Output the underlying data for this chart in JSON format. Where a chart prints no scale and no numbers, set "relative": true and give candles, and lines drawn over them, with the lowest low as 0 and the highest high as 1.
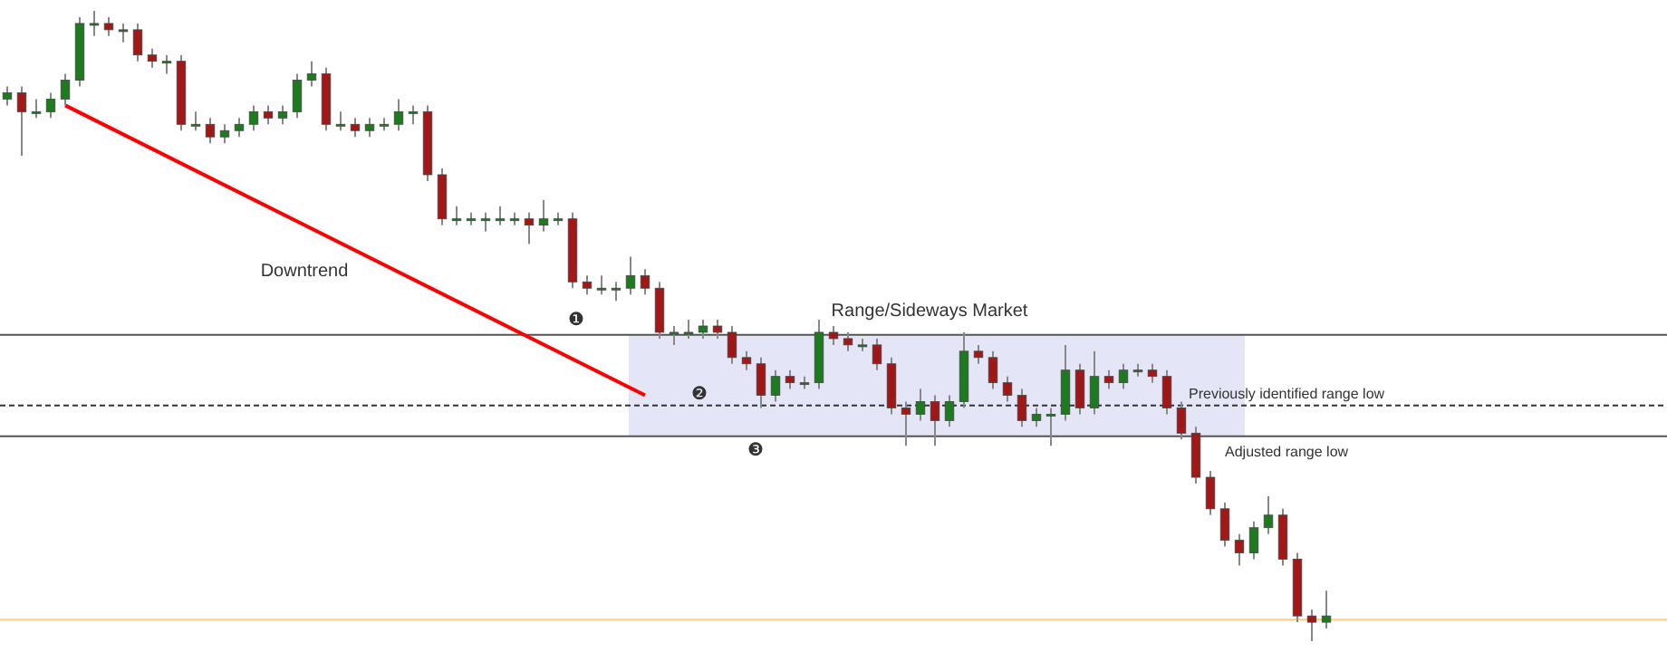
{
  "chart_data": {
    "type": "candlestick",
    "relative": true,
    "tick_labels": false,
    "categories": [
      null,
      null,
      null,
      null,
      null,
      null,
      null,
      null,
      null,
      null,
      null,
      null,
      null,
      null,
      null,
      null,
      null,
      null,
      null,
      null,
      null,
      null,
      null,
      null,
      null,
      null,
      null,
      null,
      null,
      null,
      null,
      null,
      null,
      null,
      null,
      null,
      null,
      null,
      null,
      null,
      null,
      null,
      null,
      null,
      null,
      null,
      null,
      null,
      null,
      null,
      null,
      null,
      null,
      null,
      null,
      null,
      null,
      null,
      null,
      null,
      null,
      null,
      null,
      null,
      null,
      null,
      null,
      null,
      null,
      null,
      null,
      null,
      null,
      null,
      null,
      null,
      null,
      null,
      null,
      null,
      null,
      null,
      null,
      null,
      null,
      null,
      null,
      null,
      null,
      null,
      null,
      null
    ],
    "ohlc": [
      [
        0.86,
        0.88,
        0.85,
        0.87
      ],
      [
        0.87,
        0.88,
        0.77,
        0.84
      ],
      [
        0.84,
        0.86,
        0.83,
        0.84
      ],
      [
        0.84,
        0.87,
        0.83,
        0.86
      ],
      [
        0.86,
        0.9,
        0.85,
        0.89
      ],
      [
        0.89,
        0.99,
        0.88,
        0.98
      ],
      [
        0.98,
        1.0,
        0.96,
        0.98
      ],
      [
        0.98,
        0.99,
        0.96,
        0.97
      ],
      [
        0.97,
        0.98,
        0.95,
        0.97
      ],
      [
        0.97,
        0.98,
        0.92,
        0.93
      ],
      [
        0.93,
        0.94,
        0.91,
        0.92
      ],
      [
        0.92,
        0.93,
        0.9,
        0.92
      ],
      [
        0.92,
        0.93,
        0.81,
        0.82
      ],
      [
        0.82,
        0.84,
        0.81,
        0.82
      ],
      [
        0.82,
        0.83,
        0.79,
        0.8
      ],
      [
        0.8,
        0.82,
        0.79,
        0.81
      ],
      [
        0.81,
        0.83,
        0.8,
        0.82
      ],
      [
        0.82,
        0.85,
        0.81,
        0.84
      ],
      [
        0.84,
        0.85,
        0.82,
        0.83
      ],
      [
        0.83,
        0.85,
        0.82,
        0.84
      ],
      [
        0.84,
        0.9,
        0.83,
        0.89
      ],
      [
        0.89,
        0.92,
        0.88,
        0.9
      ],
      [
        0.9,
        0.91,
        0.81,
        0.82
      ],
      [
        0.82,
        0.84,
        0.81,
        0.82
      ],
      [
        0.82,
        0.83,
        0.8,
        0.81
      ],
      [
        0.81,
        0.83,
        0.8,
        0.82
      ],
      [
        0.82,
        0.83,
        0.81,
        0.82
      ],
      [
        0.82,
        0.86,
        0.81,
        0.84
      ],
      [
        0.84,
        0.85,
        0.82,
        0.84
      ],
      [
        0.84,
        0.85,
        0.73,
        0.74
      ],
      [
        0.74,
        0.75,
        0.66,
        0.67
      ],
      [
        0.67,
        0.69,
        0.66,
        0.67
      ],
      [
        0.67,
        0.68,
        0.66,
        0.67
      ],
      [
        0.67,
        0.68,
        0.65,
        0.67
      ],
      [
        0.67,
        0.69,
        0.66,
        0.67
      ],
      [
        0.67,
        0.68,
        0.66,
        0.67
      ],
      [
        0.67,
        0.68,
        0.63,
        0.66
      ],
      [
        0.66,
        0.7,
        0.65,
        0.67
      ],
      [
        0.67,
        0.68,
        0.66,
        0.67
      ],
      [
        0.67,
        0.68,
        0.56,
        0.57
      ],
      [
        0.57,
        0.58,
        0.55,
        0.56
      ],
      [
        0.56,
        0.58,
        0.55,
        0.56
      ],
      [
        0.56,
        0.57,
        0.54,
        0.56
      ],
      [
        0.56,
        0.61,
        0.55,
        0.58
      ],
      [
        0.58,
        0.59,
        0.55,
        0.56
      ],
      [
        0.56,
        0.57,
        0.48,
        0.49
      ],
      [
        0.49,
        0.5,
        0.47,
        0.49
      ],
      [
        0.49,
        0.51,
        0.48,
        0.49
      ],
      [
        0.49,
        0.51,
        0.48,
        0.5
      ],
      [
        0.5,
        0.51,
        0.48,
        0.49
      ],
      [
        0.49,
        0.5,
        0.44,
        0.45
      ],
      [
        0.45,
        0.46,
        0.43,
        0.44
      ],
      [
        0.44,
        0.45,
        0.37,
        0.39
      ],
      [
        0.39,
        0.43,
        0.38,
        0.42
      ],
      [
        0.42,
        0.43,
        0.4,
        0.41
      ],
      [
        0.41,
        0.42,
        0.4,
        0.41
      ],
      [
        0.41,
        0.51,
        0.4,
        0.49
      ],
      [
        0.49,
        0.5,
        0.47,
        0.48
      ],
      [
        0.48,
        0.49,
        0.46,
        0.47
      ],
      [
        0.47,
        0.48,
        0.46,
        0.47
      ],
      [
        0.47,
        0.48,
        0.43,
        0.44
      ],
      [
        0.44,
        0.45,
        0.36,
        0.37
      ],
      [
        0.37,
        0.38,
        0.31,
        0.36
      ],
      [
        0.36,
        0.4,
        0.35,
        0.38
      ],
      [
        0.38,
        0.39,
        0.31,
        0.35
      ],
      [
        0.35,
        0.39,
        0.34,
        0.38
      ],
      [
        0.38,
        0.49,
        0.37,
        0.46
      ],
      [
        0.46,
        0.47,
        0.44,
        0.45
      ],
      [
        0.45,
        0.46,
        0.4,
        0.41
      ],
      [
        0.41,
        0.42,
        0.38,
        0.39
      ],
      [
        0.39,
        0.4,
        0.34,
        0.35
      ],
      [
        0.35,
        0.37,
        0.34,
        0.36
      ],
      [
        0.36,
        0.37,
        0.31,
        0.36
      ],
      [
        0.36,
        0.47,
        0.35,
        0.43
      ],
      [
        0.43,
        0.44,
        0.36,
        0.37
      ],
      [
        0.37,
        0.46,
        0.36,
        0.42
      ],
      [
        0.42,
        0.43,
        0.4,
        0.41
      ],
      [
        0.41,
        0.44,
        0.4,
        0.43
      ],
      [
        0.43,
        0.44,
        0.42,
        0.43
      ],
      [
        0.43,
        0.44,
        0.41,
        0.42
      ],
      [
        0.42,
        0.43,
        0.36,
        0.37
      ],
      [
        0.37,
        0.38,
        0.32,
        0.33
      ],
      [
        0.33,
        0.34,
        0.25,
        0.26
      ],
      [
        0.26,
        0.27,
        0.2,
        0.21
      ],
      [
        0.21,
        0.22,
        0.15,
        0.16
      ],
      [
        0.16,
        0.17,
        0.12,
        0.14
      ],
      [
        0.14,
        0.19,
        0.13,
        0.18
      ],
      [
        0.18,
        0.23,
        0.17,
        0.2
      ],
      [
        0.2,
        0.21,
        0.12,
        0.13
      ],
      [
        0.13,
        0.14,
        0.03,
        0.04
      ],
      [
        0.04,
        0.05,
        0.0,
        0.03
      ],
      [
        0.03,
        0.08,
        0.02,
        0.04
      ]
    ],
    "series": [
      {
        "type": "line",
        "color": "#ff0000",
        "values": [
          null,
          null,
          null,
          null,
          0.85,
          null,
          null,
          null,
          null,
          null,
          null,
          null,
          null,
          null,
          null,
          null,
          null,
          null,
          null,
          null,
          null,
          null,
          null,
          null,
          null,
          null,
          null,
          null,
          null,
          null,
          null,
          null,
          null,
          null,
          null,
          null,
          null,
          null,
          null,
          null,
          null,
          null,
          null,
          null,
          0.39,
          null,
          null,
          null,
          null,
          null,
          null,
          null,
          null,
          null,
          null,
          null,
          null,
          null,
          null,
          null,
          null,
          null,
          null,
          null,
          null,
          null,
          null,
          null,
          null,
          null,
          null,
          null,
          null,
          null,
          null,
          null,
          null,
          null,
          null,
          null,
          null,
          null,
          null,
          null,
          null,
          null,
          null,
          null,
          null,
          null,
          null,
          null
        ]
      }
    ],
    "ref_lines": [
      {
        "axis": "y",
        "value": 0.486,
        "color": "#555555"
      },
      {
        "axis": "y",
        "value": 0.374,
        "label": "Previously identified range low",
        "color": "#333333",
        "line_style": "dashed"
      },
      {
        "axis": "y",
        "value": 0.325,
        "label": "Adjusted range low",
        "color": "#555555"
      },
      {
        "axis": "y",
        "value": 0.034,
        "color": "#ffcc80"
      }
    ],
    "annotations": [
      "Downtrend",
      "Range/Sideways Market",
      "❶",
      "❷",
      "❸"
    ]
  }
}
